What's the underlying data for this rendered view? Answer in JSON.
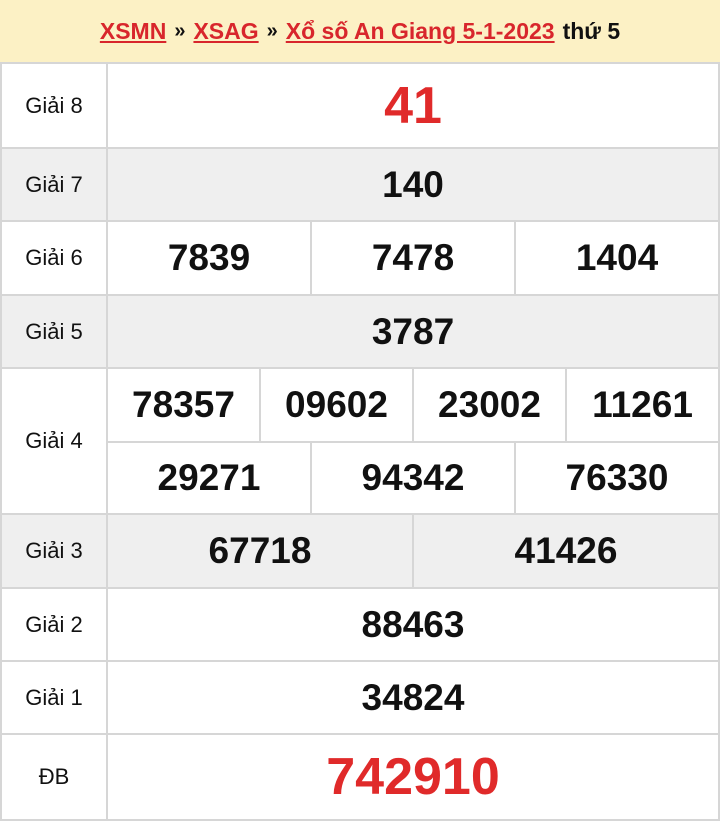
{
  "breadcrumb": {
    "items": [
      "XSMN",
      "XSAG",
      "Xổ số An Giang 5-1-2023"
    ],
    "separator": "»",
    "suffix": "thứ 5"
  },
  "results": {
    "g8": {
      "label": "Giải 8",
      "numbers": [
        "41"
      ]
    },
    "g7": {
      "label": "Giải 7",
      "numbers": [
        "140"
      ]
    },
    "g6": {
      "label": "Giải 6",
      "numbers": [
        "7839",
        "7478",
        "1404"
      ]
    },
    "g5": {
      "label": "Giải 5",
      "numbers": [
        "3787"
      ]
    },
    "g4": {
      "label": "Giải 4",
      "numbers": [
        "78357",
        "09602",
        "23002",
        "11261",
        "29271",
        "94342",
        "76330"
      ]
    },
    "g3": {
      "label": "Giải 3",
      "numbers": [
        "67718",
        "41426"
      ]
    },
    "g2": {
      "label": "Giải 2",
      "numbers": [
        "88463"
      ]
    },
    "g1": {
      "label": "Giải 1",
      "numbers": [
        "34824"
      ]
    },
    "db": {
      "label": "ĐB",
      "numbers": [
        "742910"
      ]
    }
  },
  "colors": {
    "accent": "#e02a2a",
    "header_bg": "#fcf1c5",
    "alt_row": "#efefef"
  }
}
